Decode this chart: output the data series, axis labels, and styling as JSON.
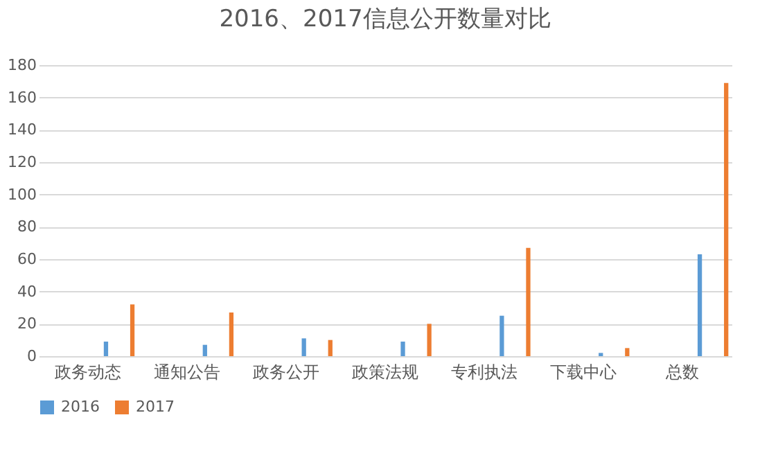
{
  "chart_data": {
    "type": "bar",
    "title": "2016、2017信息公开数量对比",
    "categories": [
      "政务动态",
      "通知公告",
      "政务公开",
      "政策法规",
      "专利执法",
      "下载中心",
      "总数"
    ],
    "series": [
      {
        "name": "2016",
        "color": "#5b9bd5",
        "values": [
          9,
          7,
          11,
          9,
          25,
          2,
          63
        ]
      },
      {
        "name": "2017",
        "color": "#ed7d31",
        "values": [
          32,
          27,
          10,
          20,
          67,
          5,
          169
        ]
      }
    ],
    "ylim": [
      0,
      180
    ],
    "yticks": [
      0,
      20,
      40,
      60,
      80,
      100,
      120,
      140,
      160,
      180
    ],
    "grid": "y",
    "legend": "bottom"
  }
}
